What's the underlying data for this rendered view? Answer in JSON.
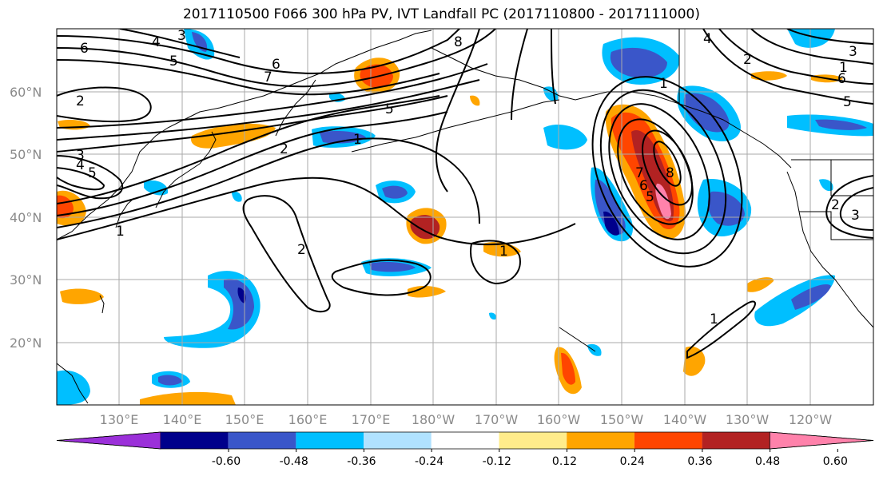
{
  "title": "2017110500 F066 300 hPa PV, IVT Landfall PC (2017110800 - 2017111000)",
  "lat_labels": [
    "60°N",
    "50°N",
    "40°N",
    "30°N",
    "20°N"
  ],
  "lon_labels": [
    "130°E",
    "140°E",
    "150°E",
    "160°E",
    "170°E",
    "180°W",
    "170°W",
    "160°W",
    "150°W",
    "140°W",
    "130°W",
    "120°W"
  ],
  "contour_labels": [
    "6",
    "4",
    "5",
    "3",
    "6",
    "7",
    "8",
    "5",
    "1",
    "2",
    "3",
    "4",
    "5",
    "2",
    "1",
    "2",
    "1",
    "1",
    "8",
    "7",
    "6",
    "5",
    "4",
    "3",
    "2",
    "1",
    "6",
    "5",
    "2",
    "3",
    "1"
  ],
  "colorbar": {
    "colors": [
      "#9b30d9",
      "#00008b",
      "#3a56c9",
      "#00bfff",
      "#b0e2ff",
      "#ffffff",
      "#ffec8b",
      "#ffa500",
      "#ff4500",
      "#b22222",
      "#ff82ab"
    ],
    "tick_labels": [
      "-0.60",
      "-0.48",
      "-0.36",
      "-0.24",
      "-0.12",
      "0.12",
      "0.24",
      "0.36",
      "0.48",
      "0.60"
    ]
  }
}
